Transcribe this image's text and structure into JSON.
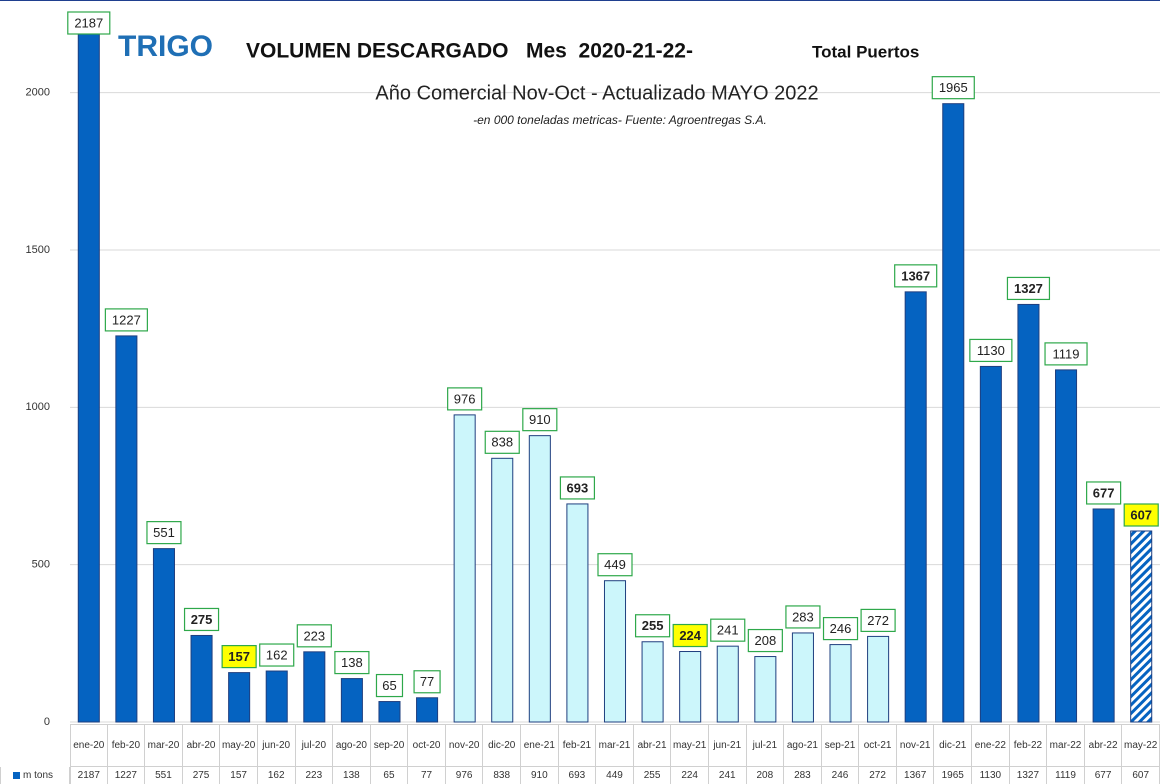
{
  "chart_data": {
    "type": "bar",
    "title": "TRIGO",
    "title_2": "VOLUMEN DESCARGADO   Mes  2020-21-22-",
    "title_3": "Total Puertos",
    "subtitle": "Año Comercial Nov-Oct  - Actualizado MAYO   2022",
    "note": "-en 000  toneladas metricas- Fuente: Agroentregas S.A.",
    "categories": [
      "ene-20",
      "feb-20",
      "mar-20",
      "abr-20",
      "may-20",
      "jun-20",
      "jul-20",
      "ago-20",
      "sep-20",
      "oct-20",
      "nov-20",
      "dic-20",
      "ene-21",
      "feb-21",
      "mar-21",
      "abr-21",
      "may-21",
      "jun-21",
      "jul-21",
      "ago-21",
      "sep-21",
      "oct-21",
      "nov-21",
      "dic-21",
      "ene-22",
      "feb-22",
      "mar-22",
      "abr-22",
      "may-22"
    ],
    "series": [
      {
        "name": "m tons",
        "color": "#0563c1",
        "values": [
          2187,
          1227,
          551,
          275,
          157,
          162,
          223,
          138,
          65,
          77,
          976,
          838,
          910,
          693,
          449,
          255,
          224,
          241,
          208,
          283,
          246,
          272,
          1367,
          1965,
          1130,
          1327,
          1119,
          677,
          607
        ],
        "point_styles": [
          "dark",
          "dark",
          "dark",
          "dark",
          "dark",
          "dark",
          "dark",
          "dark",
          "dark",
          "dark",
          "light",
          "light",
          "light",
          "light",
          "light",
          "light",
          "light",
          "light",
          "light",
          "light",
          "light",
          "light",
          "dark",
          "dark",
          "dark",
          "dark",
          "dark",
          "dark",
          "hatched"
        ],
        "label_bold": [
          false,
          false,
          false,
          true,
          true,
          false,
          false,
          false,
          false,
          false,
          false,
          false,
          false,
          true,
          false,
          true,
          true,
          false,
          false,
          false,
          false,
          false,
          true,
          false,
          false,
          true,
          false,
          true,
          true
        ],
        "label_fill": [
          "#ffffff",
          "#ffffff",
          "#ffffff",
          "#ffffff",
          "#ffff00",
          "#ffffff",
          "#ffffff",
          "#ffffff",
          "#ffffff",
          "#ffffff",
          "#ffffff",
          "#ffffff",
          "#ffffff",
          "#ffffff",
          "#ffffff",
          "#ffffff",
          "#ffff00",
          "#ffffff",
          "#ffffff",
          "#ffffff",
          "#ffffff",
          "#ffffff",
          "#ffffff",
          "#ffffff",
          "#ffffff",
          "#ffffff",
          "#ffffff",
          "#ffffff",
          "#ffff00"
        ]
      }
    ],
    "style_colors": {
      "dark": "#0563c1",
      "light": "#ccf6fb",
      "hatched": "#0563c1"
    },
    "ylim": [
      0,
      2250
    ],
    "yticks": [
      0,
      500,
      1000,
      1500,
      2000
    ],
    "grid": true
  }
}
